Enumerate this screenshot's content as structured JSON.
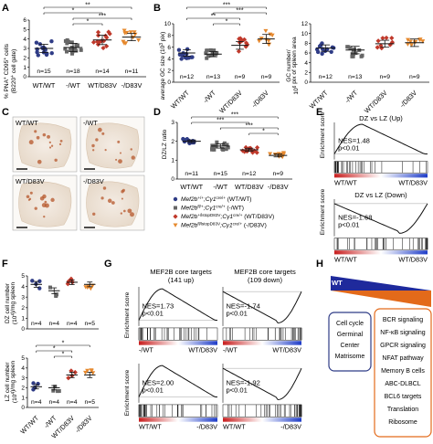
{
  "colors": {
    "wt_wt": "#2f3c86",
    "ko_wt": "#666666",
    "wt_d83v": "#c0392b",
    "ko_d83v": "#e6892e",
    "wt_bar": "#1f2a9c",
    "d83v_bar": "#e36a1a",
    "box_left": "#2f3c86",
    "box_right": "#e36a1a"
  },
  "panels": {
    "A": {
      "letter": "A",
      "ylabel_top": "% PNA",
      "ylabel_bottom": "CD95",
      "ylabel_tail": "cells",
      "ylabel_sub": "(B220",
      "ylabel_sub2": "cell gate)",
      "yticks": [
        "0",
        "1",
        "2",
        "3",
        "4",
        "5",
        "6"
      ],
      "n": [
        "n=15",
        "n=18",
        "n=14",
        "n=11"
      ],
      "cats": [
        "WT/WT",
        "-/WT",
        "WT/D83V",
        "-/D83V"
      ],
      "sig": [
        "*",
        "**",
        "*",
        "***",
        "*"
      ]
    },
    "B": {
      "letter": "B",
      "left": {
        "ylabel": "average GC size (10",
        "ylabel_tail": "pix)",
        "yticks": [
          "0",
          "2",
          "4",
          "6",
          "8",
          "10"
        ],
        "n": [
          "n=12",
          "n=13",
          "n=9",
          "n=9"
        ],
        "sig": [
          "***",
          "***",
          "**",
          "*"
        ]
      },
      "right": {
        "ylabel": "GC number/",
        "ylabel2": "10",
        "ylabel2_tail": " pix of spleen area",
        "yticks": [
          "0",
          "2",
          "4",
          "6",
          "8",
          "10",
          "12"
        ],
        "n": [
          "n=12",
          "n=13",
          "n=9",
          "n=9"
        ]
      },
      "cats": [
        "WT/WT",
        "-/WT",
        "WT/D83V",
        "-/D83V"
      ]
    },
    "C": {
      "letter": "C",
      "tiles": [
        "WT/WT",
        "-/WT",
        "WT/D83V",
        "-/D83V"
      ]
    },
    "D": {
      "letter": "D",
      "ylabel": "DZ/LZ ratio",
      "yticks": [
        "0",
        "1",
        "2",
        "3"
      ],
      "n": [
        "n=11",
        "n=15",
        "n=12",
        "n=9"
      ],
      "cats": [
        "WT/WT",
        "-/WT",
        "WT/D83V",
        "-/D83V"
      ],
      "sig": [
        "***",
        "***",
        "***",
        "*"
      ],
      "legend": [
        {
          "key": "wt_wt",
          "gene": "Mef2b",
          "sup": "+/+",
          "mid": ";Cγ1",
          "sup2": "cre/+",
          "tail": " (WT/WT)"
        },
        {
          "key": "ko_wt",
          "gene": "Mef2b",
          "sup": "fl/+",
          "mid": ";Cγ1",
          "sup2": "cre/+",
          "tail": " (-/WT)"
        },
        {
          "key": "wt_d83v",
          "gene": "Mef2b",
          "sup": "+/lstopD83V",
          "mid": ";Cγ1",
          "sup2": "cre/+",
          "tail": " (WT/D83V)"
        },
        {
          "key": "ko_d83v",
          "gene": "Mef2b",
          "sup": "fl/lstopD83V",
          "mid": ";Cγ1",
          "sup2": "cre/+",
          "tail": " (-/D83V)"
        }
      ]
    },
    "E": {
      "letter": "E",
      "ylabel": "Enrichment score",
      "top": {
        "title": "DZ vs LZ (Up)",
        "nes": "NES=1.48",
        "p": "p<0.01",
        "left": "WT/WT",
        "right": "WT/D83V"
      },
      "bottom": {
        "title": "DZ vs LZ (Down)",
        "nes": "NES=-1.68",
        "p": "p<0.01",
        "left": "WT/WT",
        "right": "WT/D83V"
      }
    },
    "F": {
      "letter": "F",
      "top": {
        "ylabel": "DZ cell number",
        "ylabel2": "(10",
        "ylabel2_tail": ")/mg spleen",
        "yticks": [
          "0",
          "1",
          "2",
          "3",
          "4",
          "5"
        ],
        "n": [
          "n=4",
          "n=4",
          "n=4",
          "n=5"
        ]
      },
      "bottom": {
        "ylabel": "LZ cell number",
        "ylabel2": "(10",
        "ylabel2_tail": ")/mg spleen",
        "yticks": [
          "0",
          "1",
          "2",
          "3",
          "4",
          "5"
        ],
        "n": [
          "n=4",
          "n=4",
          "n=4",
          "n=5"
        ],
        "sig": [
          "*",
          "*",
          "*"
        ]
      },
      "cats": [
        "WT/WT",
        "-/WT",
        "WT/D83V",
        "-/D83V"
      ]
    },
    "G": {
      "letter": "G",
      "ylabel": "Enrichment score",
      "col1": {
        "title": "MEF2B core targets",
        "sub": "(141 up)"
      },
      "col2": {
        "title": "MEF2B core targets",
        "sub": "(109 down)"
      },
      "plots": [
        {
          "nes": "NES=1.73",
          "p": "p<0.01",
          "left": "-/WT",
          "right": "WT/D83V"
        },
        {
          "nes": "NES=-1.74",
          "p": "p<0.01",
          "left": "-/WT",
          "right": "WT/D83V"
        },
        {
          "nes": "NES=2.00",
          "p": "p<0.01",
          "left": "WT/WT",
          "right": "-/D83V"
        },
        {
          "nes": "NES=-1.92",
          "p": "p<0.01",
          "left": "WT/WT",
          "right": "-/D83V"
        }
      ]
    },
    "H": {
      "letter": "H",
      "wt": "WT",
      "d83v": "D83V",
      "left_box": [
        "Cell cycle",
        "Germinal",
        "Center",
        "Matrisome"
      ],
      "right_box": [
        "BCR signaling",
        "NF-κB signaling",
        "GPCR signaling",
        "NFAT pathway",
        "Memory B cells",
        "ABC-DLBCL",
        "BCL6 targets",
        "Translation",
        "Ribosome"
      ]
    }
  },
  "chart_data": [
    {
      "panel": "A",
      "type": "scatter",
      "categories": [
        "WT/WT",
        "-/WT",
        "WT/D83V",
        "-/D83V"
      ],
      "ylim": [
        0,
        6
      ],
      "series": [
        {
          "values": [
            3.0,
            3.1,
            3.9,
            4.2
          ]
        }
      ]
    },
    {
      "panel": "B-left",
      "type": "scatter",
      "categories": [
        "WT/WT",
        "-/WT",
        "WT/D83V",
        "-/D83V"
      ],
      "ylim": [
        0,
        10
      ],
      "series": [
        {
          "values": [
            5.0,
            4.8,
            6.3,
            7.4
          ]
        }
      ]
    },
    {
      "panel": "B-right",
      "type": "scatter",
      "categories": [
        "WT/WT",
        "-/WT",
        "WT/D83V",
        "-/D83V"
      ],
      "ylim": [
        0,
        12
      ],
      "series": [
        {
          "values": [
            7.0,
            6.6,
            7.9,
            8.1
          ]
        }
      ]
    },
    {
      "panel": "D",
      "type": "scatter",
      "categories": [
        "WT/WT",
        "-/WT",
        "WT/D83V",
        "-/D83V"
      ],
      "ylim": [
        0,
        3
      ],
      "series": [
        {
          "values": [
            2.0,
            1.75,
            1.55,
            1.25
          ]
        }
      ]
    },
    {
      "panel": "F-top",
      "type": "scatter",
      "categories": [
        "WT/WT",
        "-/WT",
        "WT/D83V",
        "-/D83V"
      ],
      "ylim": [
        0,
        5
      ],
      "series": [
        {
          "values": [
            4.2,
            3.6,
            4.4,
            4.2
          ]
        }
      ]
    },
    {
      "panel": "F-bottom",
      "type": "scatter",
      "categories": [
        "WT/WT",
        "-/WT",
        "WT/D83V",
        "-/D83V"
      ],
      "ylim": [
        0,
        5
      ],
      "series": [
        {
          "values": [
            2.1,
            2.0,
            3.3,
            3.3
          ]
        }
      ]
    }
  ]
}
